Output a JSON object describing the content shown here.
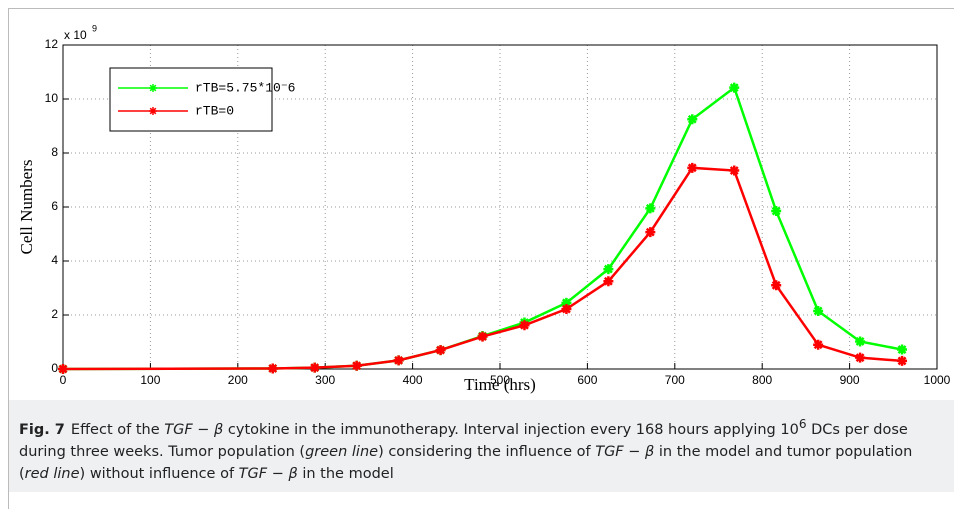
{
  "chart_data": {
    "type": "line",
    "x_label": "Time (hrs)",
    "y_label": "Cell Numbers",
    "y_scale_text": "x 10",
    "y_scale_exponent": "9",
    "x": [
      0,
      240,
      288,
      336,
      384,
      432,
      480,
      528,
      576,
      624,
      672,
      720,
      768,
      816,
      864,
      912,
      960
    ],
    "series": [
      {
        "name": "rTB=5.75*10⁻6",
        "color": "#00ff00",
        "values": [
          0,
          0.02,
          0.05,
          0.12,
          0.32,
          0.7,
          1.22,
          1.72,
          2.45,
          3.7,
          5.95,
          9.25,
          10.42,
          5.85,
          2.15,
          1.02,
          0.72
        ]
      },
      {
        "name": "rTB=0",
        "color": "#ff0000",
        "values": [
          0,
          0.02,
          0.05,
          0.12,
          0.32,
          0.7,
          1.2,
          1.62,
          2.22,
          3.25,
          5.07,
          7.45,
          7.35,
          3.1,
          0.9,
          0.42,
          0.3
        ]
      }
    ],
    "xlim": [
      0,
      1000
    ],
    "xticks": [
      0,
      100,
      200,
      300,
      400,
      500,
      600,
      700,
      800,
      900,
      1000
    ],
    "ylim": [
      0,
      12
    ],
    "yticks": [
      0,
      2,
      4,
      6,
      8,
      10,
      12
    ],
    "grid": true,
    "legend": "upper left"
  },
  "caption": {
    "label": "Fig. 7",
    "parts": [
      "Effect of the ",
      "TGF − β",
      " cytokine in the immunotherapy. Interval injection every 168 hours applying 10",
      "6",
      " DCs per dose during three weeks. Tumor population (",
      "green line",
      ") considering the influence of ",
      "TGF − β",
      " in the model and tumor population (",
      "red line",
      ") without influence of ",
      "TGF − β",
      " in the model"
    ]
  }
}
